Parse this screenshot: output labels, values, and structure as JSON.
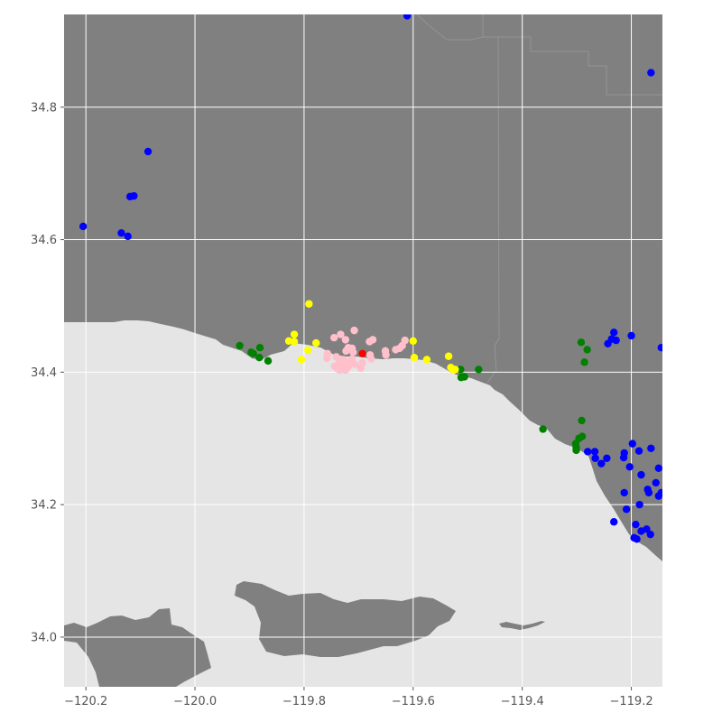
{
  "map": {
    "style": "ggplot",
    "colors": {
      "land": "#808080",
      "water": "#e5e5e5",
      "grid": "#ffffff",
      "boundary": "#9a9a9a",
      "tick_text": "#555555"
    }
  },
  "chart_data": {
    "type": "scatter",
    "title": "",
    "xlabel": "",
    "ylabel": "",
    "xlim": [
      -120.24,
      -119.143
    ],
    "ylim": [
      33.925,
      34.94
    ],
    "grid": true,
    "x_ticks": [
      {
        "value": -120.2,
        "label": "−120.2"
      },
      {
        "value": -120.0,
        "label": "−120.0"
      },
      {
        "value": -119.8,
        "label": "−119.8"
      },
      {
        "value": -119.6,
        "label": "−119.6"
      },
      {
        "value": -119.4,
        "label": "−119.4"
      },
      {
        "value": -119.2,
        "label": "−119.2"
      }
    ],
    "y_ticks": [
      {
        "value": 34.0,
        "label": "34.0"
      },
      {
        "value": 34.2,
        "label": "34.2"
      },
      {
        "value": 34.4,
        "label": "34.4"
      },
      {
        "value": 34.6,
        "label": "34.6"
      },
      {
        "value": 34.8,
        "label": "34.8"
      }
    ],
    "series": [
      {
        "color": "#0000ff",
        "points": [
          [
            -120.205,
            34.62
          ],
          [
            -120.086,
            34.733
          ],
          [
            -120.112,
            34.666
          ],
          [
            -120.119,
            34.665
          ],
          [
            -120.135,
            34.61
          ],
          [
            -120.123,
            34.605
          ],
          [
            -119.611,
            34.938
          ],
          [
            -119.164,
            34.852
          ],
          [
            -119.232,
            34.46
          ],
          [
            -119.236,
            34.45
          ],
          [
            -119.228,
            34.448
          ],
          [
            -119.243,
            34.443
          ],
          [
            -119.2,
            34.455
          ],
          [
            -119.145,
            34.437
          ],
          [
            -119.28,
            34.28
          ],
          [
            -119.267,
            34.28
          ],
          [
            -119.266,
            34.27
          ],
          [
            -119.255,
            34.262
          ],
          [
            -119.245,
            34.27
          ],
          [
            -119.213,
            34.278
          ],
          [
            -119.214,
            34.271
          ],
          [
            -119.198,
            34.292
          ],
          [
            -119.186,
            34.281
          ],
          [
            -119.164,
            34.285
          ],
          [
            -119.203,
            34.257
          ],
          [
            -119.182,
            34.245
          ],
          [
            -119.15,
            34.255
          ],
          [
            -119.155,
            34.233
          ],
          [
            -119.145,
            34.218
          ],
          [
            -119.17,
            34.223
          ],
          [
            -119.168,
            34.218
          ],
          [
            -119.15,
            34.213
          ],
          [
            -119.213,
            34.218
          ],
          [
            -119.209,
            34.193
          ],
          [
            -119.185,
            34.2
          ],
          [
            -119.232,
            34.174
          ],
          [
            -119.192,
            34.17
          ],
          [
            -119.172,
            34.163
          ],
          [
            -119.182,
            34.16
          ],
          [
            -119.165,
            34.155
          ],
          [
            -119.195,
            34.15
          ],
          [
            -119.19,
            34.148
          ]
        ]
      },
      {
        "color": "#008000",
        "points": [
          [
            -119.918,
            34.44
          ],
          [
            -119.897,
            34.43
          ],
          [
            -119.893,
            34.428
          ],
          [
            -119.881,
            34.437
          ],
          [
            -119.882,
            34.422
          ],
          [
            -119.866,
            34.417
          ],
          [
            -119.513,
            34.404
          ],
          [
            -119.512,
            34.392
          ],
          [
            -119.506,
            34.393
          ],
          [
            -119.48,
            34.404
          ],
          [
            -119.362,
            34.314
          ],
          [
            -119.292,
            34.445
          ],
          [
            -119.281,
            34.434
          ],
          [
            -119.286,
            34.415
          ],
          [
            -119.291,
            34.327
          ],
          [
            -119.296,
            34.3
          ],
          [
            -119.29,
            34.303
          ],
          [
            -119.302,
            34.292
          ],
          [
            -119.301,
            34.286
          ],
          [
            -119.301,
            34.282
          ]
        ]
      },
      {
        "color": "#ffff00",
        "points": [
          [
            -119.791,
            34.503
          ],
          [
            -119.818,
            34.457
          ],
          [
            -119.828,
            34.447
          ],
          [
            -119.818,
            34.446
          ],
          [
            -119.778,
            34.444
          ],
          [
            -119.793,
            34.433
          ],
          [
            -119.805,
            34.419
          ],
          [
            -119.6,
            34.447
          ],
          [
            -119.598,
            34.422
          ],
          [
            -119.575,
            34.419
          ],
          [
            -119.535,
            34.424
          ],
          [
            -119.531,
            34.407
          ],
          [
            -119.526,
            34.403
          ],
          [
            -119.523,
            34.404
          ]
        ]
      },
      {
        "color": "#ffc0cb",
        "points": [
          [
            -119.708,
            34.463
          ],
          [
            -119.733,
            34.457
          ],
          [
            -119.745,
            34.452
          ],
          [
            -119.724,
            34.449
          ],
          [
            -119.68,
            34.446
          ],
          [
            -119.674,
            34.449
          ],
          [
            -119.615,
            34.448
          ],
          [
            -119.62,
            34.44
          ],
          [
            -119.625,
            34.436
          ],
          [
            -119.632,
            34.434
          ],
          [
            -119.651,
            34.432
          ],
          [
            -119.65,
            34.426
          ],
          [
            -119.679,
            34.426
          ],
          [
            -119.677,
            34.42
          ],
          [
            -119.712,
            34.436
          ],
          [
            -119.719,
            34.437
          ],
          [
            -119.723,
            34.432
          ],
          [
            -119.71,
            34.43
          ],
          [
            -119.757,
            34.428
          ],
          [
            -119.758,
            34.421
          ],
          [
            -119.741,
            34.423
          ],
          [
            -119.735,
            34.418
          ],
          [
            -119.728,
            34.419
          ],
          [
            -119.712,
            34.42
          ],
          [
            -119.718,
            34.416
          ],
          [
            -119.735,
            34.412
          ],
          [
            -119.728,
            34.408
          ],
          [
            -119.719,
            34.408
          ],
          [
            -119.707,
            34.412
          ],
          [
            -119.693,
            34.414
          ],
          [
            -119.696,
            34.406
          ],
          [
            -119.724,
            34.403
          ],
          [
            -119.74,
            34.406
          ],
          [
            -119.735,
            34.403
          ],
          [
            -119.744,
            34.409
          ]
        ]
      },
      {
        "color": "#ff0000",
        "points": [
          [
            -119.693,
            34.428
          ]
        ]
      }
    ]
  }
}
